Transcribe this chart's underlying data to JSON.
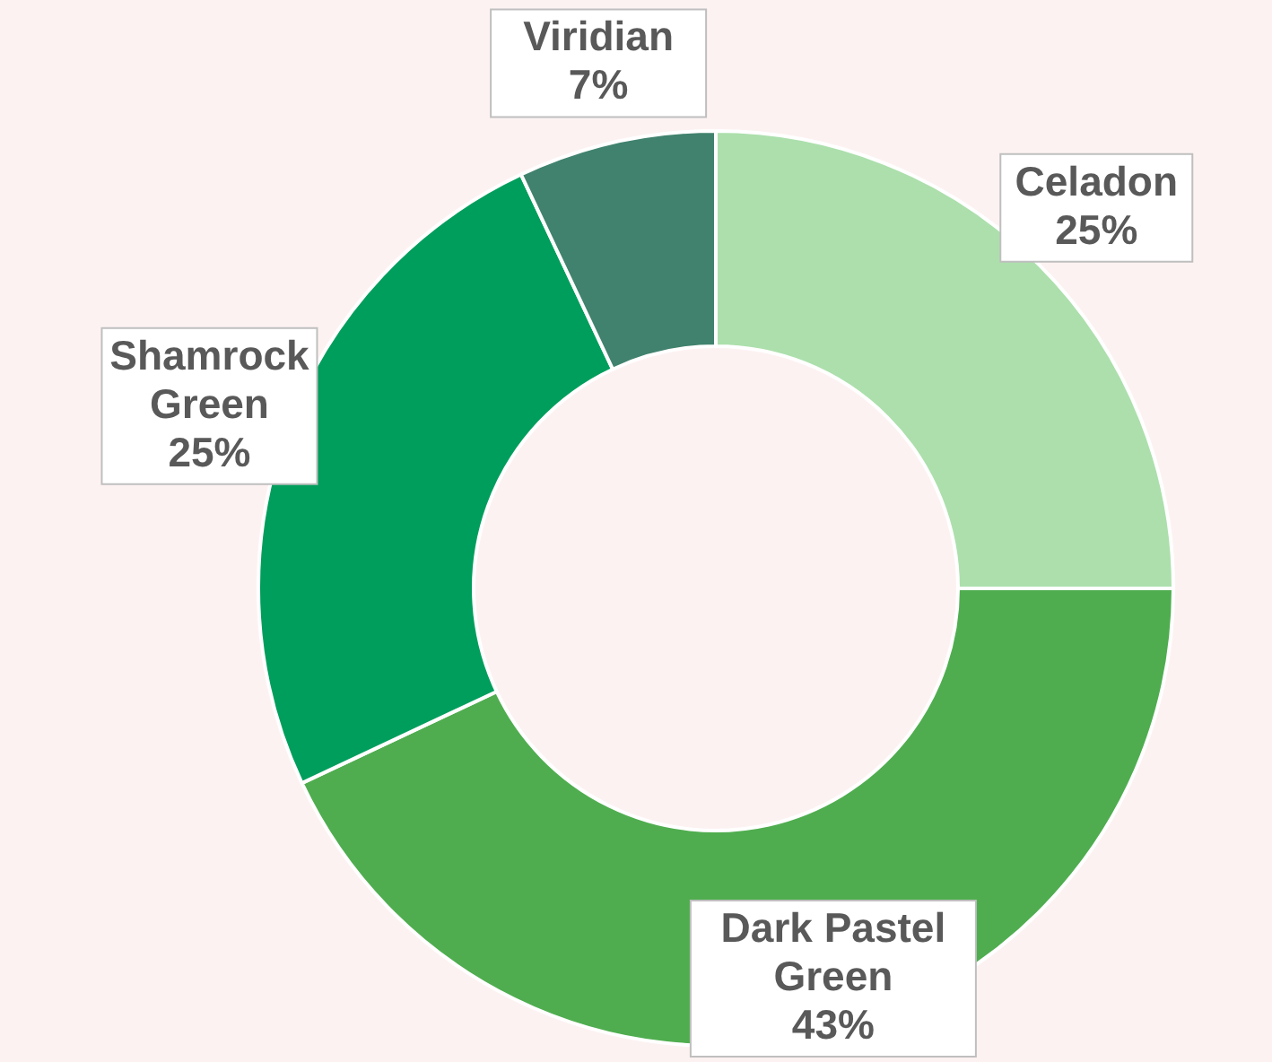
{
  "chart_data": {
    "type": "donut",
    "categories": [
      "Celadon",
      "Dark Pastel Green",
      "Shamrock Green",
      "Viridian"
    ],
    "values": [
      25,
      43,
      25,
      7
    ],
    "value_labels": [
      "25%",
      "43%",
      "25%",
      "7%"
    ],
    "colors": [
      "#acdfac",
      "#4fad4f",
      "#009e5c",
      "#40826d"
    ]
  }
}
